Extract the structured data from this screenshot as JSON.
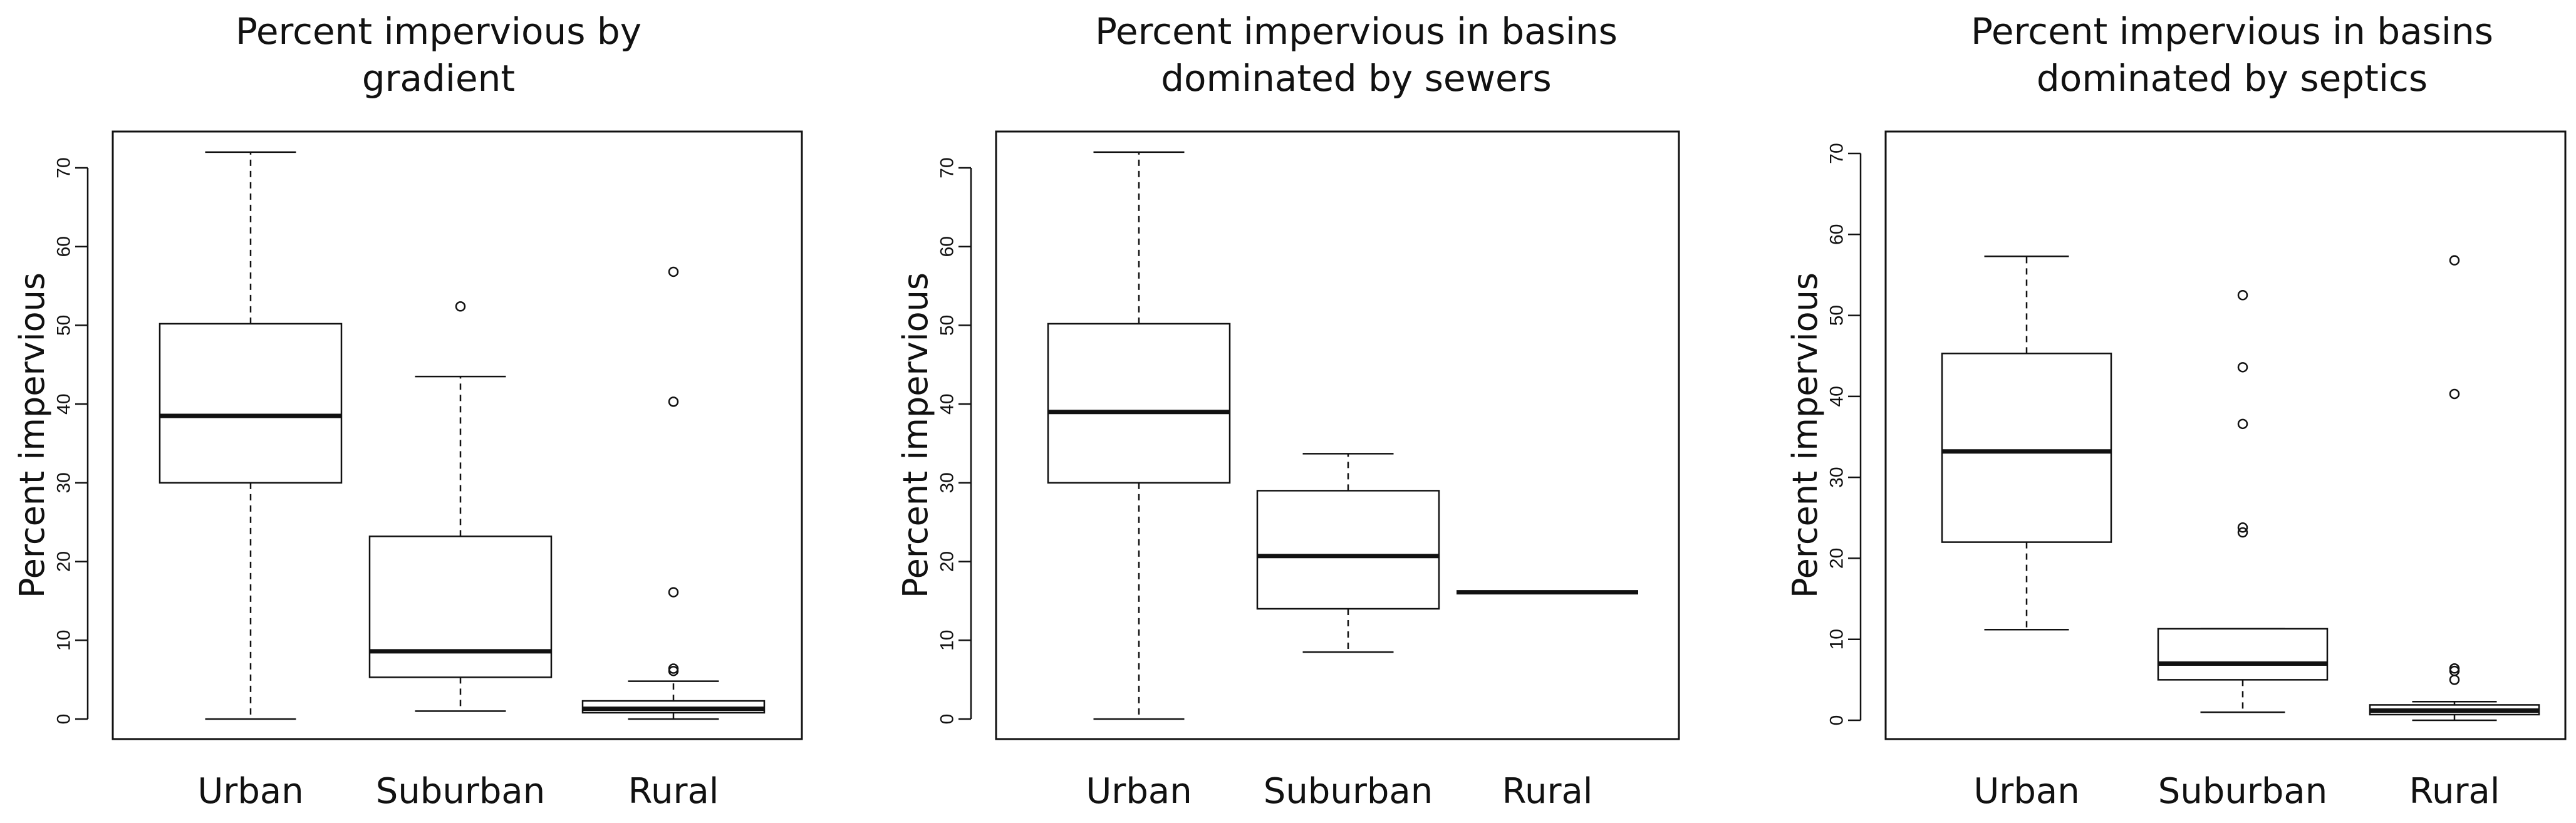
{
  "chart_data": [
    {
      "type": "boxplot",
      "title": "Percent impervious by gradient",
      "title_lines": [
        "Percent impervious by",
        "gradient"
      ],
      "ylabel": "Percent impervious",
      "xlabel": "",
      "ylim": [
        0,
        70
      ],
      "yticks": [
        0,
        10,
        20,
        30,
        40,
        50,
        60,
        70
      ],
      "grid": false,
      "categories": [
        "Urban",
        "Suburban",
        "Rural"
      ],
      "boxes": [
        {
          "category": "Urban",
          "whisker_low": 0,
          "q1": 30,
          "median": 38.5,
          "q3": 50.2,
          "whisker_high": 72,
          "outliers": []
        },
        {
          "category": "Suburban",
          "whisker_low": 1,
          "q1": 5.3,
          "median": 8.6,
          "q3": 23.2,
          "whisker_high": 43.5,
          "outliers": [
            52.4
          ]
        },
        {
          "category": "Rural",
          "whisker_low": 0,
          "q1": 0.8,
          "median": 1.3,
          "q3": 2.3,
          "whisker_high": 4.8,
          "outliers": [
            6.1,
            6.4,
            16.1,
            40.3,
            56.8
          ]
        }
      ]
    },
    {
      "type": "boxplot",
      "title": "Percent impervious in basins dominated by sewers",
      "title_lines": [
        "Percent impervious in basins",
        "dominated by sewers"
      ],
      "ylabel": "Percent impervious",
      "xlabel": "",
      "ylim": [
        0,
        70
      ],
      "yticks": [
        0,
        10,
        20,
        30,
        40,
        50,
        60,
        70
      ],
      "grid": false,
      "categories": [
        "Urban",
        "Suburban",
        "Rural"
      ],
      "boxes": [
        {
          "category": "Urban",
          "whisker_low": 0,
          "q1": 30,
          "median": 39,
          "q3": 50.2,
          "whisker_high": 72,
          "outliers": []
        },
        {
          "category": "Suburban",
          "whisker_low": 8.5,
          "q1": 14,
          "median": 20.7,
          "q3": 29,
          "whisker_high": 33.7,
          "outliers": []
        },
        {
          "category": "Rural",
          "whisker_low": 16.1,
          "q1": 16.1,
          "median": 16.1,
          "q3": 16.1,
          "whisker_high": 16.1,
          "outliers": []
        }
      ]
    },
    {
      "type": "boxplot",
      "title": "Percent impervious in basins dominated by septics",
      "title_lines": [
        "Percent impervious in basins",
        "dominated by septics"
      ],
      "ylabel": "Percent impervious",
      "xlabel": "",
      "ylim": [
        0,
        70
      ],
      "yticks": [
        0,
        10,
        20,
        30,
        40,
        50,
        60,
        70
      ],
      "grid": false,
      "categories": [
        "Urban",
        "Suburban",
        "Rural"
      ],
      "boxes": [
        {
          "category": "Urban",
          "whisker_low": 11.2,
          "q1": 22,
          "median": 33.2,
          "q3": 45.3,
          "whisker_high": 57.3,
          "outliers": []
        },
        {
          "category": "Suburban",
          "whisker_low": 1,
          "q1": 5,
          "median": 7,
          "q3": 11.3,
          "whisker_high": 11.3,
          "outliers": [
            23.2,
            23.8,
            36.6,
            43.6,
            52.5
          ]
        },
        {
          "category": "Rural",
          "whisker_low": 0,
          "q1": 0.7,
          "median": 1.2,
          "q3": 1.9,
          "whisker_high": 2.3,
          "outliers": [
            5,
            6.1,
            6.4,
            40.3,
            56.8
          ]
        }
      ]
    }
  ]
}
